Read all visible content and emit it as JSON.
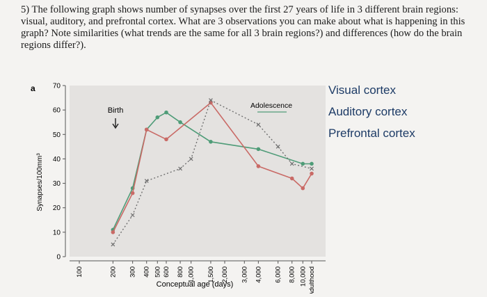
{
  "question": {
    "text": "5) The following graph shows number of synapses over the first 27 years of life in 3 different brain regions: visual, auditory, and prefrontal cortex. What are 3 observations you can make about what is happening in this graph? Note similarities (what trends are the same for all 3 brain regions?) and differences (how do the brain regions differ?)."
  },
  "legend_text": {
    "visual": "Visual cortex",
    "auditory": "Auditory cortex",
    "prefrontal": "Prefrontal cortex"
  },
  "chart_data": {
    "type": "line",
    "panel_label": "a",
    "xlabel": "Conceptual age (days)",
    "ylabel": "Synapses/100mm³",
    "ylim": [
      0,
      70
    ],
    "yticks": [
      0,
      10,
      20,
      30,
      40,
      50,
      60,
      70
    ],
    "x_categories": [
      "100",
      "200",
      "300",
      "400",
      "500",
      "600",
      "800",
      "1,000",
      "1,500",
      "2,000",
      "3,000",
      "4,000",
      "6,000",
      "8,000",
      "10,000",
      "Adulthood"
    ],
    "annotations": {
      "birth": "Birth",
      "adolescence": "Adolescence"
    },
    "colors": {
      "visual": "#4f9c78",
      "auditory": "#c96a66",
      "prefrontal": "#6f6f6f"
    },
    "series": [
      {
        "key": "visual",
        "style": "solid",
        "points": [
          [
            200,
            11
          ],
          [
            300,
            28
          ],
          [
            400,
            52
          ],
          [
            500,
            57
          ],
          [
            600,
            59
          ],
          [
            800,
            55
          ],
          [
            1500,
            47
          ],
          [
            4000,
            44
          ],
          [
            10000,
            38
          ],
          [
            12000,
            38
          ]
        ]
      },
      {
        "key": "auditory",
        "style": "solid",
        "points": [
          [
            200,
            10
          ],
          [
            300,
            26
          ],
          [
            400,
            52
          ],
          [
            600,
            48
          ],
          [
            1500,
            63
          ],
          [
            4000,
            37
          ],
          [
            8000,
            32
          ],
          [
            10000,
            28
          ],
          [
            12000,
            34
          ]
        ]
      },
      {
        "key": "prefrontal",
        "style": "dotted",
        "points": [
          [
            200,
            5
          ],
          [
            300,
            17
          ],
          [
            400,
            31
          ],
          [
            800,
            36
          ],
          [
            1000,
            40
          ],
          [
            1500,
            64
          ],
          [
            4000,
            54
          ],
          [
            6000,
            45
          ],
          [
            8000,
            38
          ],
          [
            12000,
            36
          ]
        ]
      }
    ]
  }
}
